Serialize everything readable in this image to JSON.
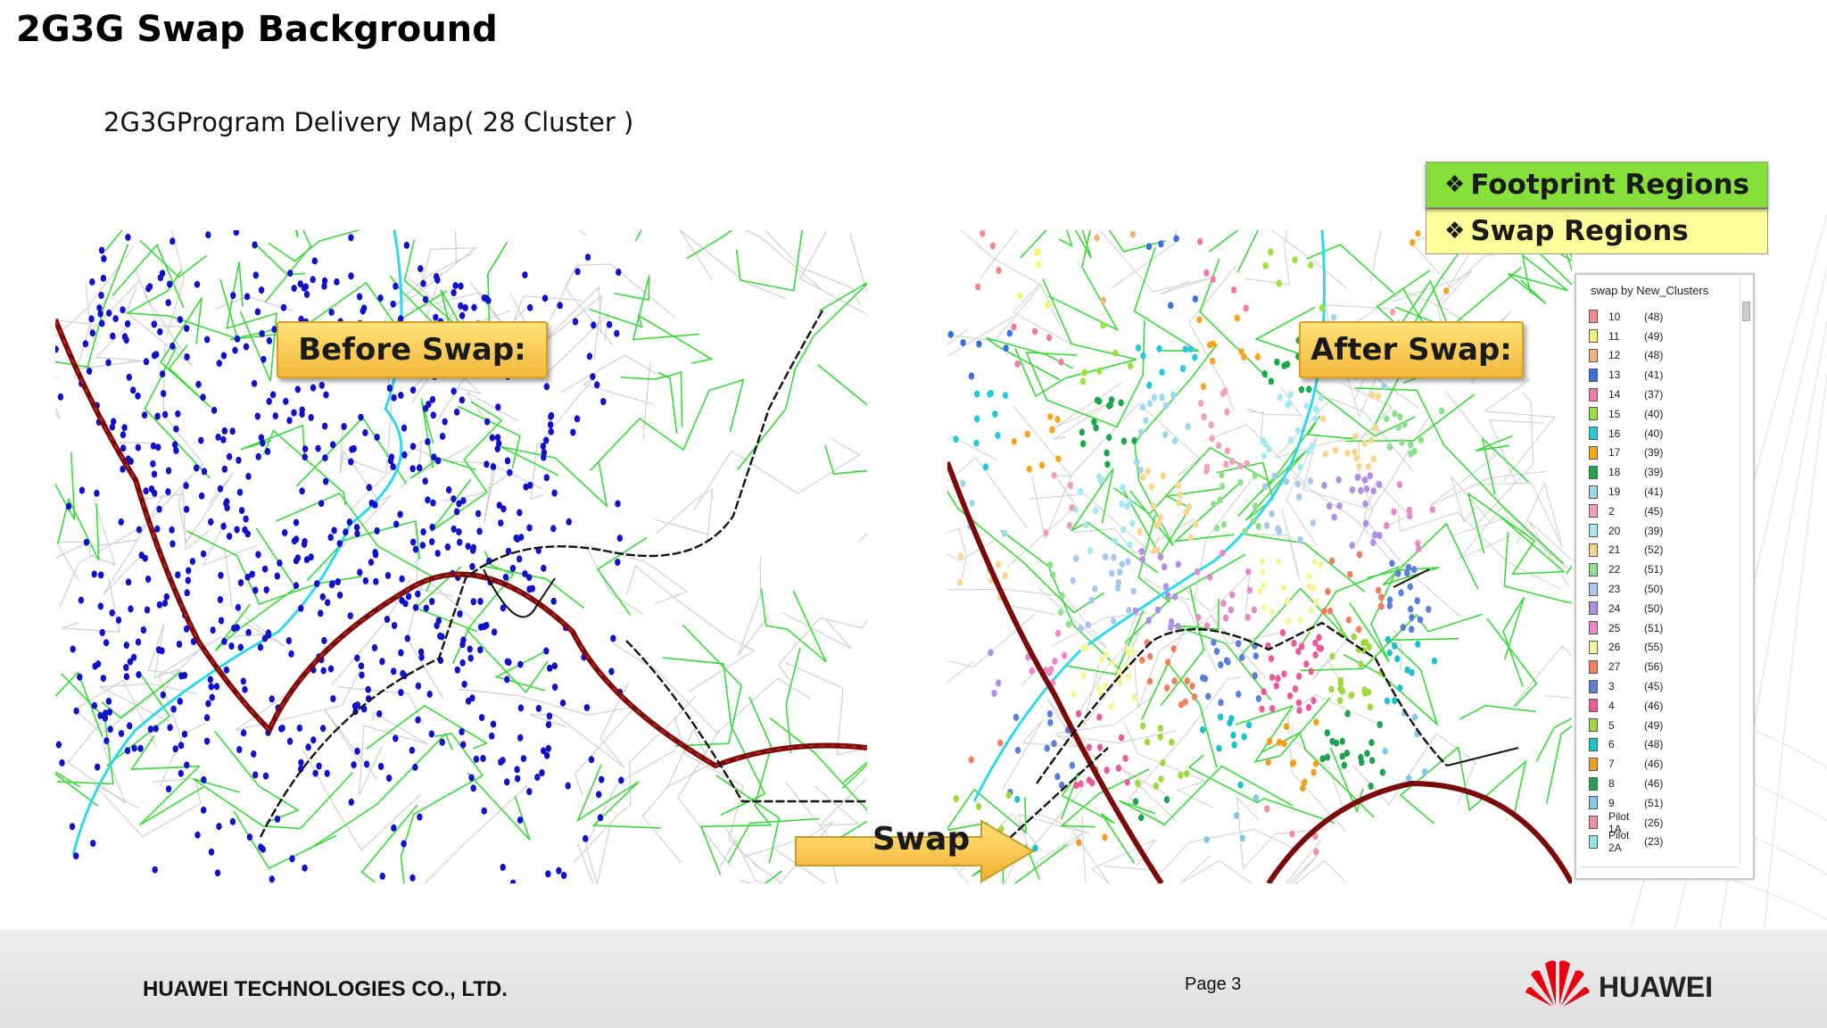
{
  "title": "2G3G Swap Background",
  "subtitle": "2G3GProgram Delivery Map( 28 Cluster )",
  "callouts": {
    "before": "Before Swap:",
    "after": "After Swap:",
    "swap": "Swap"
  },
  "regions": {
    "bullet": "❖",
    "footprint": "Footprint Regions",
    "swap": "Swap Regions",
    "footprint_color": "#86e03a",
    "swap_color": "#ffff99"
  },
  "legend": {
    "title": "swap by New_Clusters",
    "items": [
      {
        "name": "10",
        "count": "(48)",
        "color": "#f28b8b"
      },
      {
        "name": "11",
        "count": "(49)",
        "color": "#f5f57a"
      },
      {
        "name": "12",
        "count": "(48)",
        "color": "#f5b27a"
      },
      {
        "name": "13",
        "count": "(41)",
        "color": "#3c6fe0"
      },
      {
        "name": "14",
        "count": "(37)",
        "color": "#f07aa8"
      },
      {
        "name": "15",
        "count": "(40)",
        "color": "#9be03c"
      },
      {
        "name": "16",
        "count": "(40)",
        "color": "#29c8d8"
      },
      {
        "name": "17",
        "count": "(39)",
        "color": "#f5a623"
      },
      {
        "name": "18",
        "count": "(39)",
        "color": "#1aa84a"
      },
      {
        "name": "19",
        "count": "(41)",
        "color": "#9ed8ee"
      },
      {
        "name": "2",
        "count": "(45)",
        "color": "#f4a0b8"
      },
      {
        "name": "20",
        "count": "(39)",
        "color": "#a8e8f0"
      },
      {
        "name": "21",
        "count": "(52)",
        "color": "#f8d890"
      },
      {
        "name": "22",
        "count": "(51)",
        "color": "#8ee08e"
      },
      {
        "name": "23",
        "count": "(50)",
        "color": "#a8c8f0"
      },
      {
        "name": "24",
        "count": "(50)",
        "color": "#b08ee0"
      },
      {
        "name": "25",
        "count": "(51)",
        "color": "#e88ac8"
      },
      {
        "name": "26",
        "count": "(55)",
        "color": "#f5f5a0"
      },
      {
        "name": "27",
        "count": "(56)",
        "color": "#f08060"
      },
      {
        "name": "3",
        "count": "(45)",
        "color": "#5c7ed8"
      },
      {
        "name": "4",
        "count": "(46)",
        "color": "#e85c9c"
      },
      {
        "name": "5",
        "count": "(49)",
        "color": "#a0d840"
      },
      {
        "name": "6",
        "count": "(48)",
        "color": "#20c0c8"
      },
      {
        "name": "7",
        "count": "(46)",
        "color": "#f0a020"
      },
      {
        "name": "8",
        "count": "(46)",
        "color": "#20a050"
      },
      {
        "name": "9",
        "count": "(51)",
        "color": "#80c8e8"
      },
      {
        "name": "Pilot 1A",
        "count": "(26)",
        "color": "#f090a0"
      },
      {
        "name": "Pilot 2A",
        "count": "(23)",
        "color": "#90e8e8"
      }
    ]
  },
  "map_colors": {
    "road_green": "#3ed63e",
    "road_grey": "#c8c8c8",
    "river": "#30d8e8",
    "highway": "#7a0a0a",
    "rail": "#111111",
    "site_before": "#1010c8"
  },
  "footer": {
    "company": "HUAWEI TECHNOLOGIES CO., LTD.",
    "page": "Page 3",
    "brand": "HUAWEI",
    "brand_color": "#e60012"
  }
}
